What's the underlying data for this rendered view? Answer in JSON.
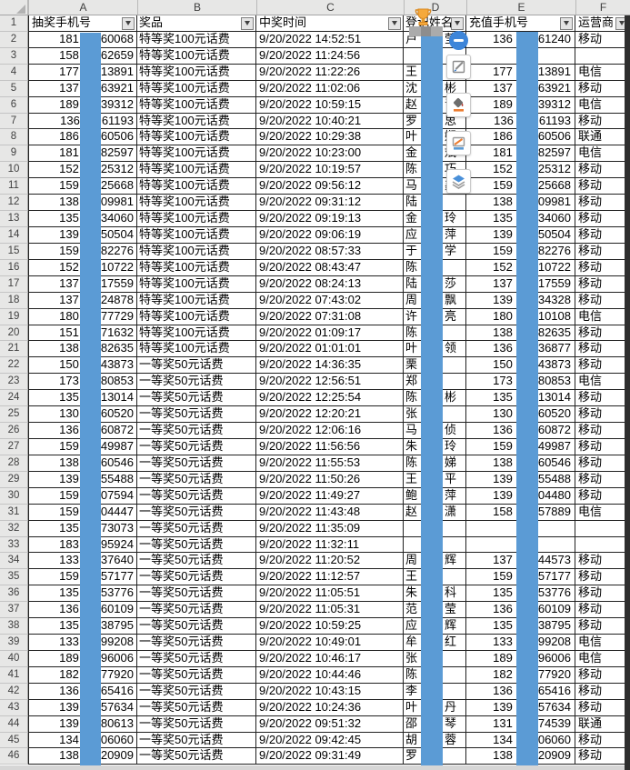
{
  "column_letters": [
    "A",
    "B",
    "C",
    "D",
    "E",
    "F"
  ],
  "header_row_number": "1",
  "headers": {
    "lottery_phone": "抽奖手机号",
    "prize": "奖品",
    "win_time": "中奖时间",
    "name": "登记姓名",
    "recharge_phone": "充值手机号",
    "carrier": "运营商"
  },
  "colors": {
    "redaction_bar": "#5b9bd5",
    "header_gray": "#e7e7e6",
    "grid_border": "#202020",
    "accent_orange": "#ed7d31",
    "accent_blue": "#5b9bd5",
    "toolbar_circle_blue": "#3d85d9"
  },
  "floating_toolbar": {
    "icons": [
      "minus-icon",
      "pencil-box-icon",
      "paint-bucket-icon",
      "pencil-line-icon",
      "layers-icon"
    ]
  },
  "table": {
    "rows": [
      {
        "n": "2",
        "a1": "181",
        "a2": "60068",
        "prize": "特等奖100元话费",
        "time": "9/20/2022 14:52:51",
        "d1": "卢",
        "d2": "莹",
        "e1": "136",
        "e2": "61240",
        "op": "移动"
      },
      {
        "n": "3",
        "a1": "158",
        "a2": "62659",
        "prize": "特等奖100元话费",
        "time": "9/20/2022 11:24:56",
        "d1": "",
        "d2": "",
        "e1": "",
        "e2": "",
        "op": ""
      },
      {
        "n": "4",
        "a1": "177",
        "a2": "13891",
        "prize": "特等奖100元话费",
        "time": "9/20/2022 11:22:26",
        "d1": "王",
        "d2": "",
        "e1": "177",
        "e2": "13891",
        "op": "电信"
      },
      {
        "n": "5",
        "a1": "137",
        "a2": "63921",
        "prize": "特等奖100元话费",
        "time": "9/20/2022 11:02:06",
        "d1": "沈",
        "d2": "彬",
        "e1": "137",
        "e2": "63921",
        "op": "移动"
      },
      {
        "n": "6",
        "a1": "189",
        "a2": "39312",
        "prize": "特等奖100元话费",
        "time": "9/20/2022 10:59:15",
        "d1": "赵",
        "d2": "青",
        "e1": "189",
        "e2": "39312",
        "op": "电信"
      },
      {
        "n": "7",
        "a1": "136",
        "a2": "61193",
        "prize": "特等奖100元话费",
        "time": "9/20/2022 10:40:21",
        "d1": "罗",
        "d2": "思",
        "e1": "136",
        "e2": "61193",
        "op": "移动"
      },
      {
        "n": "8",
        "a1": "186",
        "a2": "60506",
        "prize": "特等奖100元话费",
        "time": "9/20/2022 10:29:38",
        "d1": "叶",
        "d2": "娴",
        "e1": "186",
        "e2": "60506",
        "op": "联通"
      },
      {
        "n": "9",
        "a1": "181",
        "a2": "82597",
        "prize": "特等奖100元话费",
        "time": "9/20/2022 10:23:00",
        "d1": "金",
        "d2": "斌",
        "e1": "181",
        "e2": "82597",
        "op": "电信"
      },
      {
        "n": "10",
        "a1": "152",
        "a2": "25312",
        "prize": "特等奖100元话费",
        "time": "9/20/2022 10:19:57",
        "d1": "陈",
        "d2": "巧",
        "e1": "152",
        "e2": "25312",
        "op": "移动"
      },
      {
        "n": "11",
        "a1": "159",
        "a2": "25668",
        "prize": "特等奖100元话费",
        "time": "9/20/2022 09:56:12",
        "d1": "马",
        "d2": "鑫",
        "e1": "159",
        "e2": "25668",
        "op": "移动"
      },
      {
        "n": "12",
        "a1": "138",
        "a2": "09981",
        "prize": "特等奖100元话费",
        "time": "9/20/2022 09:31:12",
        "d1": "陆",
        "d2": "",
        "e1": "138",
        "e2": "09981",
        "op": "移动"
      },
      {
        "n": "13",
        "a1": "135",
        "a2": "34060",
        "prize": "特等奖100元话费",
        "time": "9/20/2022 09:19:13",
        "d1": "金",
        "d2": "玲",
        "e1": "135",
        "e2": "34060",
        "op": "移动"
      },
      {
        "n": "14",
        "a1": "139",
        "a2": "50504",
        "prize": "特等奖100元话费",
        "time": "9/20/2022 09:06:19",
        "d1": "应",
        "d2": "萍",
        "e1": "139",
        "e2": "50504",
        "op": "移动"
      },
      {
        "n": "15",
        "a1": "159",
        "a2": "82276",
        "prize": "特等奖100元话费",
        "time": "9/20/2022 08:57:33",
        "d1": "于",
        "d2": "学",
        "e1": "159",
        "e2": "82276",
        "op": "移动"
      },
      {
        "n": "16",
        "a1": "152",
        "a2": "10722",
        "prize": "特等奖100元话费",
        "time": "9/20/2022 08:43:47",
        "d1": "陈",
        "d2": "",
        "e1": "152",
        "e2": "10722",
        "op": "移动"
      },
      {
        "n": "17",
        "a1": "137",
        "a2": "17559",
        "prize": "特等奖100元话费",
        "time": "9/20/2022 08:24:13",
        "d1": "陆",
        "d2": "莎",
        "e1": "137",
        "e2": "17559",
        "op": "移动"
      },
      {
        "n": "18",
        "a1": "137",
        "a2": "24878",
        "prize": "特等奖100元话费",
        "time": "9/20/2022 07:43:02",
        "d1": "周",
        "d2": "飘",
        "e1": "139",
        "e2": "34328",
        "op": "移动"
      },
      {
        "n": "19",
        "a1": "180",
        "a2": "77729",
        "prize": "特等奖100元话费",
        "time": "9/20/2022 07:31:08",
        "d1": "许",
        "d2": "亮",
        "e1": "180",
        "e2": "10108",
        "op": "电信"
      },
      {
        "n": "20",
        "a1": "151",
        "a2": "71632",
        "prize": "特等奖100元话费",
        "time": "9/20/2022 01:09:17",
        "d1": "陈",
        "d2": "",
        "e1": "138",
        "e2": "82635",
        "op": "移动"
      },
      {
        "n": "21",
        "a1": "138",
        "a2": "82635",
        "prize": "特等奖100元话费",
        "time": "9/20/2022 01:01:01",
        "d1": "叶",
        "d2": "领",
        "e1": "136",
        "e2": "36877",
        "op": "移动"
      },
      {
        "n": "22",
        "a1": "150",
        "a2": "43873",
        "prize": "一等奖50元话费",
        "time": "9/20/2022 14:36:35",
        "d1": "栗",
        "d2": "",
        "e1": "150",
        "e2": "43873",
        "op": "移动"
      },
      {
        "n": "23",
        "a1": "173",
        "a2": "80853",
        "prize": "一等奖50元话费",
        "time": "9/20/2022 12:56:51",
        "d1": "郑",
        "d2": "",
        "e1": "173",
        "e2": "80853",
        "op": "电信"
      },
      {
        "n": "24",
        "a1": "135",
        "a2": "13014",
        "prize": "一等奖50元话费",
        "time": "9/20/2022 12:25:54",
        "d1": "陈",
        "d2": "彬",
        "e1": "135",
        "e2": "13014",
        "op": "移动"
      },
      {
        "n": "25",
        "a1": "130",
        "a2": "60520",
        "prize": "一等奖50元话费",
        "time": "9/20/2022 12:20:21",
        "d1": "张",
        "d2": "",
        "e1": "130",
        "e2": "60520",
        "op": "移动"
      },
      {
        "n": "26",
        "a1": "136",
        "a2": "60872",
        "prize": "一等奖50元话费",
        "time": "9/20/2022 12:06:16",
        "d1": "马",
        "d2": "侦",
        "e1": "136",
        "e2": "60872",
        "op": "移动"
      },
      {
        "n": "27",
        "a1": "159",
        "a2": "49987",
        "prize": "一等奖50元话费",
        "time": "9/20/2022 11:56:56",
        "d1": "朱",
        "d2": "玲",
        "e1": "159",
        "e2": "49987",
        "op": "移动"
      },
      {
        "n": "28",
        "a1": "138",
        "a2": "60546",
        "prize": "一等奖50元话费",
        "time": "9/20/2022 11:55:53",
        "d1": "陈",
        "d2": "娣",
        "e1": "138",
        "e2": "60546",
        "op": "移动"
      },
      {
        "n": "29",
        "a1": "139",
        "a2": "55488",
        "prize": "一等奖50元话费",
        "time": "9/20/2022 11:50:26",
        "d1": "王",
        "d2": "平",
        "e1": "139",
        "e2": "55488",
        "op": "移动"
      },
      {
        "n": "30",
        "a1": "159",
        "a2": "07594",
        "prize": "一等奖50元话费",
        "time": "9/20/2022 11:49:27",
        "d1": "鲍",
        "d2": "萍",
        "e1": "139",
        "e2": "04480",
        "op": "移动"
      },
      {
        "n": "31",
        "a1": "159",
        "a2": "04447",
        "prize": "一等奖50元话费",
        "time": "9/20/2022 11:43:48",
        "d1": "赵",
        "d2": "潇",
        "e1": "158",
        "e2": "57889",
        "op": "电信"
      },
      {
        "n": "32",
        "a1": "135",
        "a2": "73073",
        "prize": "一等奖50元话费",
        "time": "9/20/2022 11:35:09",
        "d1": "",
        "d2": "",
        "e1": "",
        "e2": "",
        "op": ""
      },
      {
        "n": "33",
        "a1": "183",
        "a2": "95924",
        "prize": "一等奖50元话费",
        "time": "9/20/2022 11:32:11",
        "d1": "",
        "d2": "",
        "e1": "",
        "e2": "",
        "op": ""
      },
      {
        "n": "34",
        "a1": "133",
        "a2": "37640",
        "prize": "一等奖50元话费",
        "time": "9/20/2022 11:20:52",
        "d1": "周",
        "d2": "辉",
        "e1": "137",
        "e2": "44573",
        "op": "移动"
      },
      {
        "n": "35",
        "a1": "159",
        "a2": "57177",
        "prize": "一等奖50元话费",
        "time": "9/20/2022 11:12:57",
        "d1": "王",
        "d2": "",
        "e1": "159",
        "e2": "57177",
        "op": "移动"
      },
      {
        "n": "36",
        "a1": "135",
        "a2": "53776",
        "prize": "一等奖50元话费",
        "time": "9/20/2022 11:05:51",
        "d1": "朱",
        "d2": "科",
        "e1": "135",
        "e2": "53776",
        "op": "移动"
      },
      {
        "n": "37",
        "a1": "136",
        "a2": "60109",
        "prize": "一等奖50元话费",
        "time": "9/20/2022 11:05:31",
        "d1": "范",
        "d2": "莹",
        "e1": "136",
        "e2": "60109",
        "op": "移动"
      },
      {
        "n": "38",
        "a1": "135",
        "a2": "38795",
        "prize": "一等奖50元话费",
        "time": "9/20/2022 10:59:25",
        "d1": "应",
        "d2": "辉",
        "e1": "135",
        "e2": "38795",
        "op": "移动"
      },
      {
        "n": "39",
        "a1": "133",
        "a2": "99208",
        "prize": "一等奖50元话费",
        "time": "9/20/2022 10:49:01",
        "d1": "牟",
        "d2": "红",
        "e1": "133",
        "e2": "99208",
        "op": "电信"
      },
      {
        "n": "40",
        "a1": "189",
        "a2": "96006",
        "prize": "一等奖50元话费",
        "time": "9/20/2022 10:46:17",
        "d1": "张",
        "d2": "",
        "e1": "189",
        "e2": "96006",
        "op": "电信"
      },
      {
        "n": "41",
        "a1": "182",
        "a2": "77920",
        "prize": "一等奖50元话费",
        "time": "9/20/2022 10:44:46",
        "d1": "陈",
        "d2": "",
        "e1": "182",
        "e2": "77920",
        "op": "移动"
      },
      {
        "n": "42",
        "a1": "136",
        "a2": "65416",
        "prize": "一等奖50元话费",
        "time": "9/20/2022 10:43:15",
        "d1": "李",
        "d2": "",
        "e1": "136",
        "e2": "65416",
        "op": "移动"
      },
      {
        "n": "43",
        "a1": "139",
        "a2": "57634",
        "prize": "一等奖50元话费",
        "time": "9/20/2022 10:24:36",
        "d1": "叶",
        "d2": "丹",
        "e1": "139",
        "e2": "57634",
        "op": "移动"
      },
      {
        "n": "44",
        "a1": "139",
        "a2": "80613",
        "prize": "一等奖50元话费",
        "time": "9/20/2022 09:51:32",
        "d1": "邵",
        "d2": "琴",
        "e1": "131",
        "e2": "74539",
        "op": "联通"
      },
      {
        "n": "45",
        "a1": "134",
        "a2": "06060",
        "prize": "一等奖50元话费",
        "time": "9/20/2022 09:42:45",
        "d1": "胡",
        "d2": "蓉",
        "e1": "134",
        "e2": "06060",
        "op": "移动"
      },
      {
        "n": "46",
        "a1": "138",
        "a2": "20909",
        "prize": "一等奖50元话费",
        "time": "9/20/2022 09:31:49",
        "d1": "罗",
        "d2": "",
        "e1": "138",
        "e2": "20909",
        "op": "移动"
      }
    ]
  }
}
